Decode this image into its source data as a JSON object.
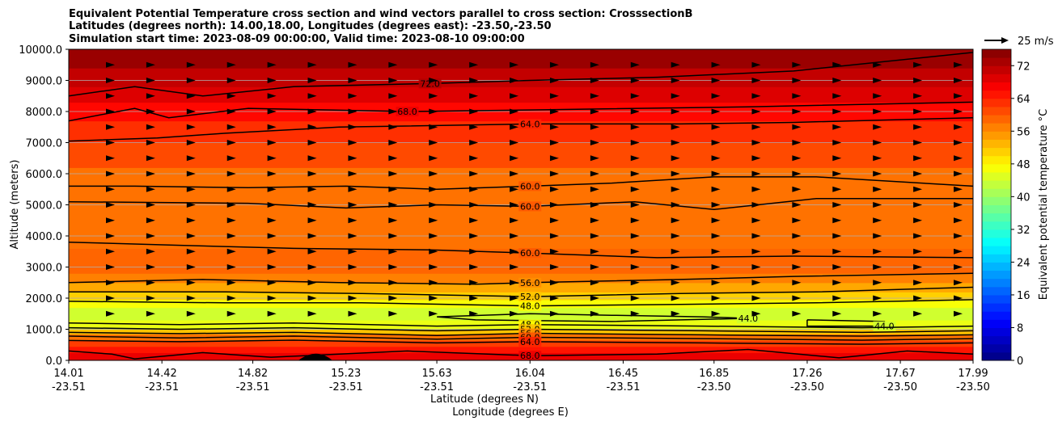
{
  "chart_data": {
    "type": "contour",
    "title_lines": [
      "Equivalent Potential Temperature cross section and wind vectors parallel to cross section: CrosssectionB",
      "Latitudes (degrees north): 14.00,18.00, Longitudes (degrees east): -23.50,-23.50",
      "Simulation start time: 2023-08-09 00:00:00, Valid time: 2023-08-10 09:00:00"
    ],
    "ylabel": "Altitude (meters)",
    "xlabel_lines": [
      "Latitude (degrees N)",
      "Longitude (degrees E)"
    ],
    "ylim": [
      0,
      10000
    ],
    "yticks": [
      "0.0",
      "1000.0",
      "2000.0",
      "3000.0",
      "4000.0",
      "5000.0",
      "6000.0",
      "7000.0",
      "8000.0",
      "9000.0",
      "10000.0"
    ],
    "xlim": [
      14.01,
      17.99
    ],
    "xticks": [
      {
        "lat": "14.01",
        "lon": "-23.51"
      },
      {
        "lat": "14.42",
        "lon": "-23.51"
      },
      {
        "lat": "14.82",
        "lon": "-23.51"
      },
      {
        "lat": "15.23",
        "lon": "-23.51"
      },
      {
        "lat": "15.63",
        "lon": "-23.51"
      },
      {
        "lat": "16.04",
        "lon": "-23.51"
      },
      {
        "lat": "16.45",
        "lon": "-23.51"
      },
      {
        "lat": "16.85",
        "lon": "-23.50"
      },
      {
        "lat": "17.26",
        "lon": "-23.50"
      },
      {
        "lat": "17.67",
        "lon": "-23.50"
      },
      {
        "lat": "17.99",
        "lon": "-23.50"
      }
    ],
    "grid": "horizontal",
    "filled_bands": [
      {
        "z0": 0,
        "z1": 250,
        "value": 68
      },
      {
        "z0": 250,
        "z1": 450,
        "value": 65
      },
      {
        "z0": 450,
        "z1": 650,
        "value": 62
      },
      {
        "z0": 650,
        "z1": 850,
        "value": 58
      },
      {
        "z0": 850,
        "z1": 1000,
        "value": 52
      },
      {
        "z0": 1000,
        "z1": 1300,
        "value": 46
      },
      {
        "z0": 1300,
        "z1": 1700,
        "value": 44
      },
      {
        "z0": 1700,
        "z1": 1950,
        "value": 47
      },
      {
        "z0": 1950,
        "z1": 2200,
        "value": 51
      },
      {
        "z0": 2200,
        "z1": 2500,
        "value": 54
      },
      {
        "z0": 2500,
        "z1": 2800,
        "value": 57
      },
      {
        "z0": 2800,
        "z1": 3600,
        "value": 59
      },
      {
        "z0": 3600,
        "z1": 6200,
        "value": 58
      },
      {
        "z0": 6200,
        "z1": 7000,
        "value": 61
      },
      {
        "z0": 7000,
        "z1": 7700,
        "value": 63
      },
      {
        "z0": 7700,
        "z1": 8300,
        "value": 66
      },
      {
        "z0": 8300,
        "z1": 8800,
        "value": 69
      },
      {
        "z0": 8800,
        "z1": 9400,
        "value": 71
      },
      {
        "z0": 9400,
        "z1": 10000,
        "value": 74
      }
    ],
    "contours": [
      {
        "value": 72,
        "label": "72.0",
        "points": [
          [
            14.01,
            8500
          ],
          [
            14.3,
            8800
          ],
          [
            14.6,
            8500
          ],
          [
            15.0,
            8800
          ],
          [
            15.6,
            8900
          ],
          [
            16.04,
            9000
          ],
          [
            16.6,
            9100
          ],
          [
            17.2,
            9300
          ],
          [
            17.99,
            9900
          ]
        ]
      },
      {
        "value": 68,
        "label": "68.0",
        "points": [
          [
            14.01,
            7700
          ],
          [
            14.3,
            8100
          ],
          [
            14.45,
            7800
          ],
          [
            14.8,
            8100
          ],
          [
            15.5,
            8000
          ],
          [
            16.04,
            8050
          ],
          [
            17.0,
            8150
          ],
          [
            17.99,
            8300
          ]
        ]
      },
      {
        "value": 64,
        "label": "64.0",
        "points": [
          [
            14.01,
            7050
          ],
          [
            14.4,
            7150
          ],
          [
            14.7,
            7300
          ],
          [
            15.2,
            7500
          ],
          [
            16.04,
            7600
          ],
          [
            16.7,
            7600
          ],
          [
            17.2,
            7650
          ],
          [
            17.99,
            7800
          ]
        ]
      },
      {
        "value": 60,
        "label": "60.0",
        "points": [
          [
            14.01,
            5600
          ],
          [
            14.3,
            5600
          ],
          [
            14.8,
            5550
          ],
          [
            15.23,
            5600
          ],
          [
            15.63,
            5500
          ],
          [
            16.04,
            5600
          ],
          [
            16.4,
            5700
          ],
          [
            16.85,
            5900
          ],
          [
            17.3,
            5900
          ],
          [
            17.99,
            5600
          ]
        ]
      },
      {
        "value": 60,
        "label": "60.0",
        "points": [
          [
            14.01,
            5100
          ],
          [
            14.8,
            5050
          ],
          [
            15.23,
            4900
          ],
          [
            15.63,
            5000
          ],
          [
            16.04,
            4950
          ],
          [
            16.5,
            5100
          ],
          [
            16.85,
            4850
          ],
          [
            17.3,
            5200
          ],
          [
            17.99,
            5200
          ]
        ]
      },
      {
        "value": 60,
        "label": "60.0",
        "points": [
          [
            14.01,
            3800
          ],
          [
            14.5,
            3700
          ],
          [
            15.0,
            3600
          ],
          [
            15.6,
            3550
          ],
          [
            16.04,
            3450
          ],
          [
            16.6,
            3300
          ],
          [
            17.2,
            3350
          ],
          [
            17.99,
            3300
          ]
        ]
      },
      {
        "value": 56,
        "label": "56.0",
        "points": [
          [
            14.01,
            2500
          ],
          [
            14.6,
            2600
          ],
          [
            15.2,
            2500
          ],
          [
            15.8,
            2450
          ],
          [
            16.04,
            2500
          ],
          [
            16.7,
            2600
          ],
          [
            17.2,
            2700
          ],
          [
            17.99,
            2800
          ]
        ]
      },
      {
        "value": 52,
        "label": "52.0",
        "points": [
          [
            14.01,
            2200
          ],
          [
            14.7,
            2200
          ],
          [
            15.3,
            2150
          ],
          [
            16.04,
            2050
          ],
          [
            16.7,
            2150
          ],
          [
            17.3,
            2200
          ],
          [
            17.99,
            2350
          ]
        ]
      },
      {
        "value": 48,
        "label": "48.0",
        "points": [
          [
            14.01,
            1900
          ],
          [
            14.7,
            1850
          ],
          [
            15.3,
            1850
          ],
          [
            16.04,
            1750
          ],
          [
            16.7,
            1800
          ],
          [
            17.3,
            1850
          ],
          [
            17.99,
            1950
          ]
        ]
      },
      {
        "value": 44,
        "label": "44.0",
        "points": [
          [
            15.63,
            1400
          ],
          [
            16.04,
            1500
          ],
          [
            16.4,
            1450
          ],
          [
            16.8,
            1400
          ],
          [
            17.0,
            1350
          ],
          [
            16.4,
            1250
          ],
          [
            15.8,
            1300
          ],
          [
            15.63,
            1400
          ]
        ]
      },
      {
        "value": 44,
        "label": "44.0",
        "points": [
          [
            17.26,
            1300
          ],
          [
            17.6,
            1250
          ],
          [
            17.6,
            1100
          ],
          [
            17.26,
            1100
          ],
          [
            17.26,
            1300
          ]
        ]
      },
      {
        "value": 48,
        "label": "48.0",
        "points": [
          [
            14.01,
            1200
          ],
          [
            14.5,
            1150
          ],
          [
            15.0,
            1200
          ],
          [
            15.63,
            1100
          ],
          [
            16.04,
            1150
          ],
          [
            16.8,
            1100
          ],
          [
            17.5,
            1050
          ],
          [
            17.99,
            1100
          ]
        ]
      },
      {
        "value": 52,
        "label": "52.0",
        "points": [
          [
            14.01,
            1050
          ],
          [
            14.5,
            1000
          ],
          [
            15.0,
            1050
          ],
          [
            15.63,
            950
          ],
          [
            16.04,
            1000
          ],
          [
            16.8,
            950
          ],
          [
            17.5,
            900
          ],
          [
            17.99,
            950
          ]
        ]
      },
      {
        "value": 56,
        "label": "56.0",
        "points": [
          [
            14.01,
            900
          ],
          [
            14.5,
            860
          ],
          [
            15.0,
            900
          ],
          [
            15.63,
            800
          ],
          [
            16.04,
            870
          ],
          [
            16.8,
            820
          ],
          [
            17.5,
            780
          ],
          [
            17.99,
            820
          ]
        ]
      },
      {
        "value": 60,
        "label": "60.0",
        "points": [
          [
            14.01,
            780
          ],
          [
            14.5,
            720
          ],
          [
            15.0,
            780
          ],
          [
            15.63,
            680
          ],
          [
            16.04,
            740
          ],
          [
            16.8,
            700
          ],
          [
            17.5,
            650
          ],
          [
            17.99,
            700
          ]
        ]
      },
      {
        "value": 64,
        "label": "64.0",
        "points": [
          [
            14.01,
            640
          ],
          [
            14.5,
            600
          ],
          [
            15.0,
            650
          ],
          [
            15.63,
            560
          ],
          [
            16.04,
            600
          ],
          [
            16.8,
            560
          ],
          [
            17.5,
            520
          ],
          [
            17.99,
            560
          ]
        ]
      },
      {
        "value": 68,
        "label": "68.0",
        "points": [
          [
            14.01,
            300
          ],
          [
            14.2,
            200
          ],
          [
            14.3,
            50
          ],
          [
            14.6,
            250
          ],
          [
            14.9,
            100
          ],
          [
            15.5,
            300
          ],
          [
            16.04,
            150
          ],
          [
            16.6,
            200
          ],
          [
            17.0,
            350
          ],
          [
            17.4,
            80
          ],
          [
            17.7,
            300
          ],
          [
            17.99,
            200
          ]
        ]
      }
    ],
    "terrain": {
      "x0": 15.02,
      "x1": 15.17,
      "peak_x": 15.1,
      "peak_z": 220
    },
    "wind": {
      "rows_z": [
        1500,
        2000,
        2500,
        3000,
        3500,
        4000,
        4500,
        5000,
        5500,
        6000,
        6500,
        7000,
        7500,
        8000,
        8500,
        9000,
        9500
      ],
      "reference_label": "25 m/s",
      "reference_speed": 25
    },
    "colorbar": {
      "label": "Equivalent potential temperature  °C",
      "min": 0,
      "max": 76,
      "ticks": [
        "0",
        "8",
        "16",
        "24",
        "32",
        "40",
        "48",
        "56",
        "64",
        "72"
      ],
      "colormap": "jet"
    }
  }
}
